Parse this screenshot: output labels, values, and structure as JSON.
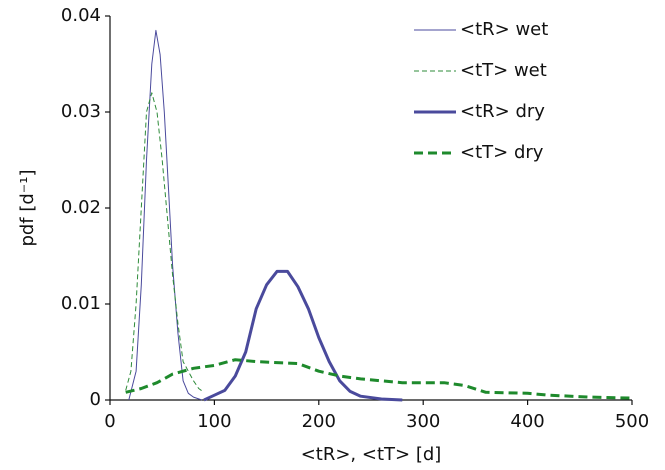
{
  "chart_data": {
    "type": "line",
    "xlabel": "<tR>, <tT> [d]",
    "ylabel": "pdf [d⁻¹]",
    "xlim": [
      0,
      500
    ],
    "xticks": [
      0,
      100,
      200,
      300,
      400,
      500
    ],
    "ylim": [
      0,
      0.04
    ],
    "yticks": [
      0,
      0.01,
      0.02,
      0.03,
      0.04
    ],
    "legend": "upper right",
    "series": [
      {
        "name": "<tR> wet",
        "color": "#4a4a9c",
        "width": 1,
        "dash": false,
        "x": [
          18,
          25,
          30,
          35,
          40,
          44,
          48,
          52,
          56,
          60,
          65,
          70,
          75,
          80,
          88
        ],
        "values": [
          0,
          0.003,
          0.012,
          0.025,
          0.035,
          0.0385,
          0.036,
          0.03,
          0.022,
          0.014,
          0.007,
          0.002,
          0.0007,
          0.0003,
          0
        ]
      },
      {
        "name": "<tT> wet",
        "color": "#2e8b3a",
        "width": 1,
        "dash": true,
        "x": [
          15,
          20,
          25,
          30,
          35,
          40,
          45,
          50,
          55,
          60,
          65,
          70,
          75,
          80,
          85,
          90
        ],
        "values": [
          0.001,
          0.003,
          0.01,
          0.02,
          0.03,
          0.032,
          0.03,
          0.025,
          0.019,
          0.013,
          0.008,
          0.004,
          0.003,
          0.002,
          0.0012,
          0.0008
        ]
      },
      {
        "name": "<tR> dry",
        "color": "#4a4a9c",
        "width": 3,
        "dash": false,
        "x": [
          90,
          100,
          110,
          120,
          130,
          140,
          150,
          160,
          170,
          180,
          190,
          200,
          210,
          220,
          230,
          240,
          260,
          280
        ],
        "values": [
          0,
          0.0005,
          0.001,
          0.0025,
          0.005,
          0.0095,
          0.012,
          0.0134,
          0.0134,
          0.0118,
          0.0095,
          0.0065,
          0.004,
          0.002,
          0.0009,
          0.0004,
          0.0001,
          0
        ]
      },
      {
        "name": "<tT> dry",
        "color": "#1e8a2c",
        "width": 3,
        "dash": true,
        "x": [
          15,
          30,
          45,
          60,
          80,
          100,
          120,
          140,
          160,
          180,
          200,
          220,
          240,
          260,
          280,
          320,
          340,
          360,
          400,
          420,
          460,
          500
        ],
        "values": [
          0.0008,
          0.0012,
          0.0018,
          0.0027,
          0.0033,
          0.0036,
          0.0042,
          0.004,
          0.0039,
          0.0038,
          0.003,
          0.0025,
          0.0022,
          0.002,
          0.0018,
          0.0018,
          0.0015,
          0.0008,
          0.0007,
          0.0005,
          0.0003,
          0.0002
        ]
      }
    ]
  }
}
